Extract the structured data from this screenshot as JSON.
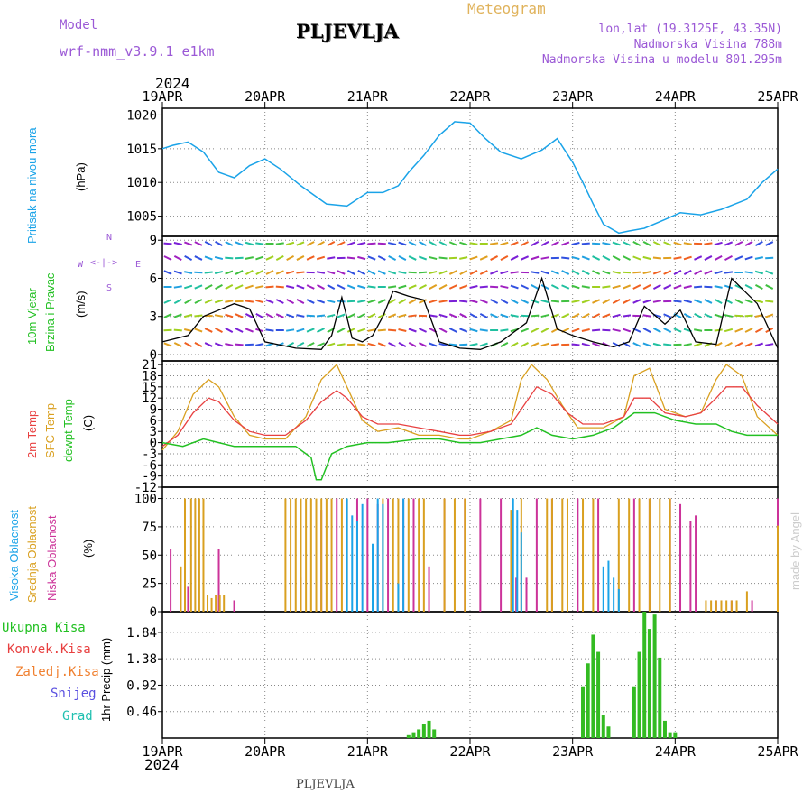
{
  "header": {
    "model_label": "Model",
    "model_name": "wrf-nmm_v3.9.1 e1km",
    "station": "PLJEVLJA",
    "product": "Meteogram",
    "lonlat": "lon,lat (19.3125E, 43.35N)",
    "elevation": "Nadmorska Visina 788m",
    "model_elevation": "Nadmorska Visina u modelu 801.295m",
    "year_top": "2024",
    "year_bottom": "2024",
    "footer_station": "PLJEVLJA",
    "credit": "made by Angel"
  },
  "colors": {
    "pressure": "#1aa3e8",
    "temp2m": "#e84040",
    "sfc": "#d9a020",
    "dewpt": "#22c022",
    "precip": "#33bb22",
    "cloud_high": "#1aa3e8",
    "cloud_mid": "#d9a020",
    "cloud_low": "#cc3399",
    "header_violet": "#9b59d6"
  },
  "panels": {
    "pressure": {
      "label1": "Pritisak na nivou mora",
      "unit": "(hPa)"
    },
    "wind": {
      "label1": "10m Vjetar",
      "label2": "Brzina i Pravac",
      "unit": "(m/s)",
      "compass_n": "N",
      "compass_s": "S",
      "compass_w": "W",
      "compass_e": "E"
    },
    "temp": {
      "label1": "2m Temp",
      "label2": "SFC Temp",
      "label3": "dewpt Temp",
      "unit": "(C)"
    },
    "cloud": {
      "label1": "Visoka Oblacnost",
      "label2": "Srednja Oblacnost",
      "label3": "Niska Oblacnost",
      "unit": "(%)"
    },
    "precip": {
      "legend": [
        "Ukupna Kisa",
        "Konvek.Kisa",
        "Zaledj.Kisa",
        "Snijeg",
        "Grad"
      ],
      "unit": "1hr Precip (mm)"
    }
  },
  "chart_data": [
    {
      "type": "line",
      "name": "pressure",
      "x_categories": [
        "19APR",
        "20APR",
        "21APR",
        "22APR",
        "23APR",
        "24APR",
        "25APR"
      ],
      "ylim": [
        1002,
        1021
      ],
      "yticks": [
        "1005",
        "1010",
        "1015",
        "1020"
      ],
      "ytick_values": [
        1005,
        1010,
        1015,
        1020
      ],
      "grid": true,
      "series": [
        {
          "x": [
            0,
            0.1,
            0.25,
            0.4,
            0.55,
            0.7,
            0.85,
            1.0,
            1.15,
            1.35,
            1.6,
            1.8,
            2.0,
            2.15,
            2.3,
            2.4,
            2.55,
            2.7,
            2.85,
            3.0,
            3.15,
            3.3,
            3.5,
            3.7,
            3.85,
            4.0,
            4.1,
            4.2,
            4.3,
            4.45,
            4.55,
            4.7,
            4.9,
            5.05,
            5.25,
            5.45,
            5.7,
            5.85,
            6.0
          ],
          "y": [
            1015,
            1015.5,
            1016,
            1014.5,
            1011.5,
            1010.7,
            1012.5,
            1013.5,
            1012,
            1009.5,
            1006.8,
            1006.5,
            1008.5,
            1008.5,
            1009.5,
            1011.5,
            1014,
            1017,
            1019,
            1018.8,
            1016.5,
            1014.5,
            1013.5,
            1014.8,
            1016.5,
            1013,
            1010,
            1006.8,
            1003.8,
            1002.5,
            1002.8,
            1003.2,
            1004.5,
            1005.5,
            1005.2,
            1006,
            1007.5,
            1010,
            1012
          ]
        }
      ]
    },
    {
      "type": "line",
      "name": "wind",
      "ylim": [
        -0.5,
        9.3
      ],
      "yticks": [
        "0",
        "3",
        "6",
        "9"
      ],
      "ytick_values": [
        0,
        3,
        6,
        9
      ],
      "grid": true,
      "series": [
        {
          "name": "speed",
          "x": [
            0,
            0.25,
            0.4,
            0.55,
            0.7,
            0.85,
            1.0,
            1.3,
            1.55,
            1.65,
            1.75,
            1.85,
            1.95,
            2.05,
            2.15,
            2.25,
            2.4,
            2.55,
            2.7,
            2.9,
            3.1,
            3.3,
            3.4,
            3.55,
            3.7,
            3.85,
            4.0,
            4.2,
            4.4,
            4.55,
            4.7,
            4.9,
            5.05,
            5.2,
            5.4,
            5.55,
            5.8,
            6.0
          ],
          "y": [
            1,
            1.5,
            3,
            3.5,
            4,
            3.6,
            1,
            0.5,
            0.4,
            1.5,
            4.5,
            1.3,
            1,
            1.5,
            3,
            5,
            4.6,
            4.3,
            1,
            0.5,
            0.4,
            1,
            1.6,
            2.5,
            6,
            2,
            1.5,
            1,
            0.6,
            1,
            3.8,
            2.4,
            3.5,
            1,
            0.8,
            6,
            4,
            0.5
          ]
        }
      ]
    },
    {
      "type": "line",
      "name": "temperature",
      "ylim": [
        -12,
        22
      ],
      "yticks": [
        "21",
        "18",
        "15",
        "12",
        "9",
        "6",
        "3",
        "0",
        "-3",
        "-6",
        "-9",
        "-12"
      ],
      "ytick_values": [
        21,
        18,
        15,
        12,
        9,
        6,
        3,
        0,
        -3,
        -6,
        -9,
        -12
      ],
      "grid": true,
      "series": [
        {
          "name": "2m Temp",
          "x": [
            0,
            0.15,
            0.3,
            0.45,
            0.55,
            0.7,
            0.85,
            1.0,
            1.2,
            1.4,
            1.55,
            1.7,
            1.8,
            1.95,
            2.1,
            2.3,
            2.5,
            2.7,
            2.9,
            3.0,
            3.2,
            3.4,
            3.55,
            3.65,
            3.8,
            3.95,
            4.1,
            4.3,
            4.5,
            4.6,
            4.75,
            4.9,
            5.1,
            5.25,
            5.4,
            5.5,
            5.65,
            5.8,
            6.0
          ],
          "y": [
            -1,
            2,
            8,
            12,
            11,
            6,
            3,
            2,
            2,
            6,
            11,
            14,
            12,
            7,
            5,
            5,
            4,
            3,
            2,
            2,
            3,
            5,
            11,
            15,
            13,
            8,
            5,
            5,
            7,
            12,
            12,
            8,
            7,
            8,
            12,
            15,
            15,
            10,
            5
          ]
        },
        {
          "name": "SFC Temp",
          "x": [
            0,
            0.15,
            0.3,
            0.45,
            0.55,
            0.7,
            0.85,
            1.0,
            1.2,
            1.4,
            1.55,
            1.7,
            1.8,
            1.95,
            2.1,
            2.3,
            2.5,
            2.7,
            2.9,
            3.0,
            3.2,
            3.4,
            3.5,
            3.6,
            3.75,
            3.9,
            4.05,
            4.3,
            4.5,
            4.6,
            4.75,
            4.9,
            5.1,
            5.25,
            5.4,
            5.5,
            5.65,
            5.8,
            6.0
          ],
          "y": [
            -2,
            3,
            13,
            17,
            15,
            7,
            2,
            1,
            1,
            7,
            17,
            21,
            15,
            6,
            3,
            4,
            2,
            2,
            1,
            1,
            3,
            6,
            17,
            21,
            17,
            10,
            4,
            4,
            7,
            18,
            20,
            9,
            7,
            8,
            17,
            21,
            18,
            7,
            2
          ]
        },
        {
          "name": "dewpt Temp",
          "x": [
            0,
            0.2,
            0.4,
            0.55,
            0.7,
            0.9,
            1.1,
            1.3,
            1.45,
            1.5,
            1.55,
            1.65,
            1.8,
            2.0,
            2.2,
            2.5,
            2.7,
            2.9,
            3.1,
            3.3,
            3.5,
            3.65,
            3.8,
            4.0,
            4.2,
            4.4,
            4.6,
            4.8,
            5.0,
            5.2,
            5.4,
            5.55,
            5.7,
            5.85,
            6.0
          ],
          "y": [
            0,
            -1,
            1,
            0,
            -1,
            -1,
            -1,
            -1,
            -4,
            -10,
            -10,
            -3,
            -1,
            0,
            0,
            1,
            1,
            0,
            0,
            1,
            2,
            4,
            2,
            1,
            2,
            4,
            8,
            8,
            6,
            5,
            5,
            3,
            2,
            2,
            2
          ]
        }
      ]
    },
    {
      "type": "bar",
      "name": "cloud",
      "ylim": [
        0,
        110
      ],
      "yticks": [
        "0",
        "25",
        "50",
        "75",
        "100"
      ],
      "ytick_values": [
        0,
        25,
        50,
        75,
        100
      ],
      "grid": true,
      "series": [
        {
          "name": "Niska Oblacnost",
          "x": [
            0.08,
            0.25,
            0.55,
            0.7,
            1.35,
            1.55,
            1.7,
            1.9,
            2.0,
            2.1,
            2.2,
            2.35,
            2.45,
            2.6,
            2.75,
            2.95,
            3.1,
            3.3,
            3.45,
            3.55,
            3.65,
            3.8,
            4.05,
            4.25,
            4.6,
            4.75,
            4.95,
            5.05,
            5.15,
            5.2,
            5.4,
            5.55,
            5.75,
            6.0
          ],
          "y": [
            55,
            22,
            55,
            10,
            30,
            90,
            100,
            100,
            100,
            95,
            100,
            100,
            100,
            40,
            100,
            100,
            100,
            100,
            30,
            30,
            100,
            100,
            100,
            100,
            100,
            100,
            100,
            95,
            80,
            85,
            10,
            10,
            10,
            100
          ]
        },
        {
          "name": "Srednja Oblacnost",
          "x": [
            0.18,
            0.22,
            0.28,
            0.32,
            0.36,
            0.4,
            0.44,
            0.48,
            0.52,
            0.56,
            0.6,
            1.2,
            1.25,
            1.3,
            1.35,
            1.4,
            1.45,
            1.5,
            1.55,
            1.6,
            1.65,
            1.75,
            1.8,
            2.15,
            2.25,
            2.3,
            2.4,
            2.5,
            2.55,
            2.75,
            2.85,
            2.95,
            3.4,
            3.5,
            3.75,
            3.8,
            3.9,
            3.95,
            4.1,
            4.2,
            4.45,
            4.55,
            4.65,
            4.75,
            4.85,
            4.95,
            5.3,
            5.35,
            5.4,
            5.45,
            5.5,
            5.55,
            5.6,
            5.7,
            6.0
          ],
          "y": [
            40,
            100,
            100,
            100,
            100,
            100,
            15,
            12,
            15,
            15,
            15,
            100,
            100,
            100,
            100,
            100,
            100,
            100,
            100,
            100,
            100,
            100,
            100,
            100,
            100,
            100,
            100,
            100,
            100,
            100,
            100,
            100,
            90,
            100,
            100,
            100,
            100,
            100,
            100,
            100,
            100,
            100,
            100,
            100,
            100,
            100,
            10,
            10,
            10,
            10,
            10,
            10,
            10,
            18,
            76
          ]
        },
        {
          "name": "Visoka Oblacnost",
          "x": [
            1.8,
            1.85,
            1.9,
            1.95,
            2.05,
            2.1,
            2.15,
            2.3,
            2.35,
            3.42,
            3.46,
            3.5,
            4.3,
            4.35,
            4.4,
            4.45
          ],
          "y": [
            100,
            85,
            80,
            95,
            60,
            100,
            95,
            25,
            100,
            100,
            90,
            70,
            40,
            45,
            30,
            20
          ]
        }
      ]
    },
    {
      "type": "bar",
      "name": "precipitation",
      "ylim": [
        0,
        2.2
      ],
      "yticks": [
        "0.46",
        "0.92",
        "1.38",
        "1.84"
      ],
      "ytick_values": [
        0.46,
        0.92,
        1.38,
        1.84
      ],
      "grid": true,
      "series": [
        {
          "name": "Ukupna Kisa",
          "x": [
            2.4,
            2.45,
            2.5,
            2.55,
            2.6,
            2.65,
            4.1,
            4.15,
            4.2,
            4.25,
            4.3,
            4.35,
            4.6,
            4.65,
            4.7,
            4.75,
            4.8,
            4.85,
            4.9,
            4.95,
            5.0
          ],
          "y": [
            0.05,
            0.1,
            0.15,
            0.25,
            0.3,
            0.15,
            0.9,
            1.3,
            1.8,
            1.5,
            0.4,
            0.2,
            0.9,
            1.5,
            2.2,
            1.9,
            2.15,
            1.4,
            0.3,
            0.1,
            0.1
          ]
        }
      ]
    }
  ]
}
